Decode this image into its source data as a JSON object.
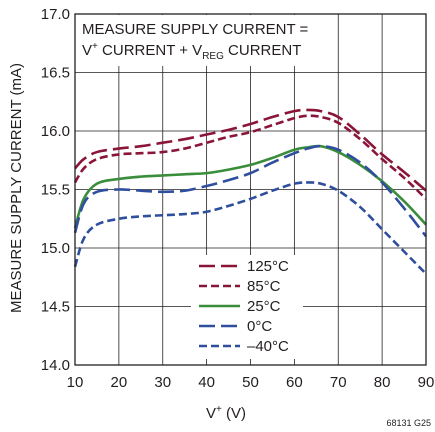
{
  "chart_data": {
    "type": "line",
    "xlabel_main": "V",
    "xlabel_sup": "+",
    "xlabel_unit": " (V)",
    "ylabel": "MEASURE SUPPLY CURRENT (mA)",
    "xlim": [
      10,
      90
    ],
    "ylim": [
      14.0,
      17.0
    ],
    "x_ticks": [
      "10",
      "20",
      "30",
      "40",
      "50",
      "60",
      "70",
      "80",
      "90"
    ],
    "y_ticks": [
      "14.0",
      "14.5",
      "15.0",
      "15.5",
      "16.0",
      "16.5",
      "17.0"
    ],
    "grid": true,
    "legend_position": "bottom-center",
    "annotation": {
      "line1": "MEASURE SUPPLY CURRENT =",
      "line2_a": "V",
      "line2_sup": "+",
      "line2_b": " CURRENT + V",
      "line2_sub": "REG",
      "line2_c": " CURRENT"
    },
    "figure_id": "68131 G25",
    "series": [
      {
        "name": "125°C",
        "color": "#8a1538",
        "dash": "16,6",
        "x": [
          10,
          12,
          15,
          20,
          25,
          30,
          35,
          40,
          45,
          50,
          55,
          60,
          63,
          66,
          70,
          75,
          80,
          85,
          90
        ],
        "y": [
          15.68,
          15.76,
          15.82,
          15.85,
          15.87,
          15.9,
          15.93,
          15.97,
          16.01,
          16.06,
          16.12,
          16.17,
          16.18,
          16.17,
          16.12,
          15.97,
          15.8,
          15.65,
          15.49
        ]
      },
      {
        "name": "85°C",
        "color": "#8a1538",
        "dash": "8,4",
        "x": [
          10,
          12,
          15,
          20,
          25,
          30,
          35,
          40,
          45,
          50,
          55,
          60,
          63,
          66,
          70,
          75,
          80,
          85,
          90
        ],
        "y": [
          15.56,
          15.68,
          15.76,
          15.8,
          15.81,
          15.82,
          15.85,
          15.9,
          15.95,
          15.99,
          16.05,
          16.11,
          16.13,
          16.12,
          16.07,
          15.93,
          15.76,
          15.6,
          15.42
        ]
      },
      {
        "name": "25°C",
        "color": "#3a8d3a",
        "dash": "",
        "x": [
          10,
          12,
          15,
          20,
          25,
          30,
          35,
          40,
          45,
          50,
          55,
          60,
          63,
          66,
          70,
          75,
          80,
          85,
          90
        ],
        "y": [
          15.17,
          15.42,
          15.55,
          15.59,
          15.61,
          15.62,
          15.63,
          15.64,
          15.67,
          15.71,
          15.77,
          15.84,
          15.86,
          15.87,
          15.82,
          15.71,
          15.57,
          15.4,
          15.2
        ]
      },
      {
        "name": "0°C",
        "color": "#2f4f9e",
        "dash": "16,6",
        "x": [
          10,
          12,
          15,
          20,
          25,
          30,
          35,
          40,
          45,
          50,
          55,
          60,
          63,
          66,
          70,
          75,
          80,
          85,
          90
        ],
        "y": [
          15.13,
          15.38,
          15.48,
          15.5,
          15.49,
          15.48,
          15.49,
          15.53,
          15.58,
          15.64,
          15.73,
          15.81,
          15.85,
          15.87,
          15.84,
          15.73,
          15.56,
          15.34,
          15.1
        ]
      },
      {
        "name": "–40°C",
        "color": "#2f4f9e",
        "dash": "8,4",
        "x": [
          10,
          12,
          15,
          20,
          25,
          30,
          35,
          40,
          45,
          50,
          55,
          60,
          63,
          66,
          70,
          75,
          80,
          85,
          90
        ],
        "y": [
          14.84,
          15.08,
          15.2,
          15.25,
          15.27,
          15.28,
          15.29,
          15.31,
          15.36,
          15.42,
          15.49,
          15.55,
          15.56,
          15.55,
          15.49,
          15.35,
          15.16,
          14.97,
          14.78
        ]
      }
    ]
  }
}
